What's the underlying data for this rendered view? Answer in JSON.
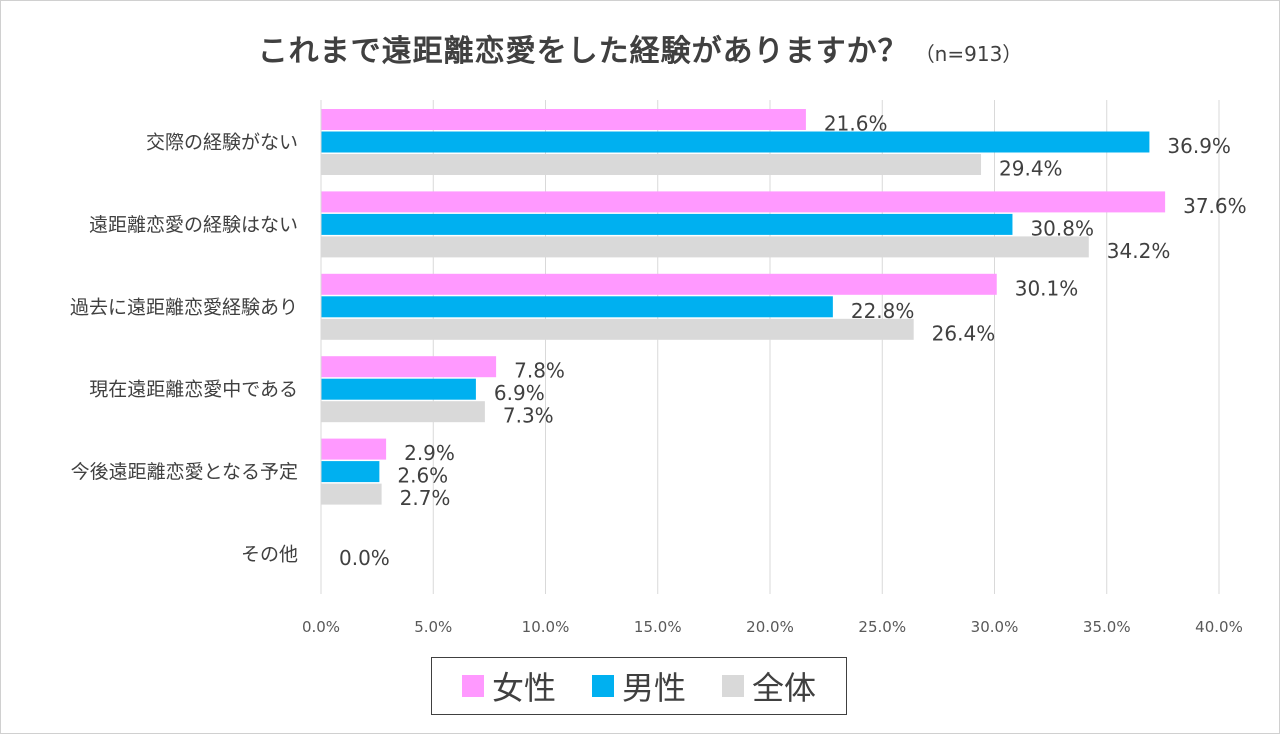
{
  "title": "これまで遠距離恋愛をした経験がありますか？",
  "subtitle": "（n=913）",
  "chart_data": {
    "type": "bar",
    "orientation": "horizontal",
    "categories": [
      "交際の経験がない",
      "遠距離恋愛の経験はない",
      "過去に遠距離恋愛経験あり",
      "現在遠距離恋愛中である",
      "今後遠距離恋愛となる予定",
      "その他"
    ],
    "series": [
      {
        "name": "女性",
        "color": "#ff99ff",
        "values": [
          21.6,
          37.6,
          30.1,
          7.8,
          2.9,
          0.0
        ],
        "labels": [
          "21.6%",
          "37.6%",
          "30.1%",
          "7.8%",
          "2.9%",
          ""
        ]
      },
      {
        "name": "男性",
        "color": "#00b0f0",
        "values": [
          36.9,
          30.8,
          22.8,
          6.9,
          2.6,
          0.0
        ],
        "labels": [
          "36.9%",
          "30.8%",
          "22.8%",
          "6.9%",
          "2.6%",
          "0.0%"
        ]
      },
      {
        "name": "全体",
        "color": "#d9d9d9",
        "values": [
          29.4,
          34.2,
          26.4,
          7.3,
          2.7,
          0.0
        ],
        "labels": [
          "29.4%",
          "34.2%",
          "26.4%",
          "7.3%",
          "2.7%",
          ""
        ]
      }
    ],
    "xlim": [
      0,
      40
    ],
    "xticks": [
      "0.0%",
      "5.0%",
      "10.0%",
      "15.0%",
      "20.0%",
      "25.0%",
      "30.0%",
      "35.0%",
      "40.0%"
    ],
    "grid": true,
    "legend": "bottom"
  }
}
